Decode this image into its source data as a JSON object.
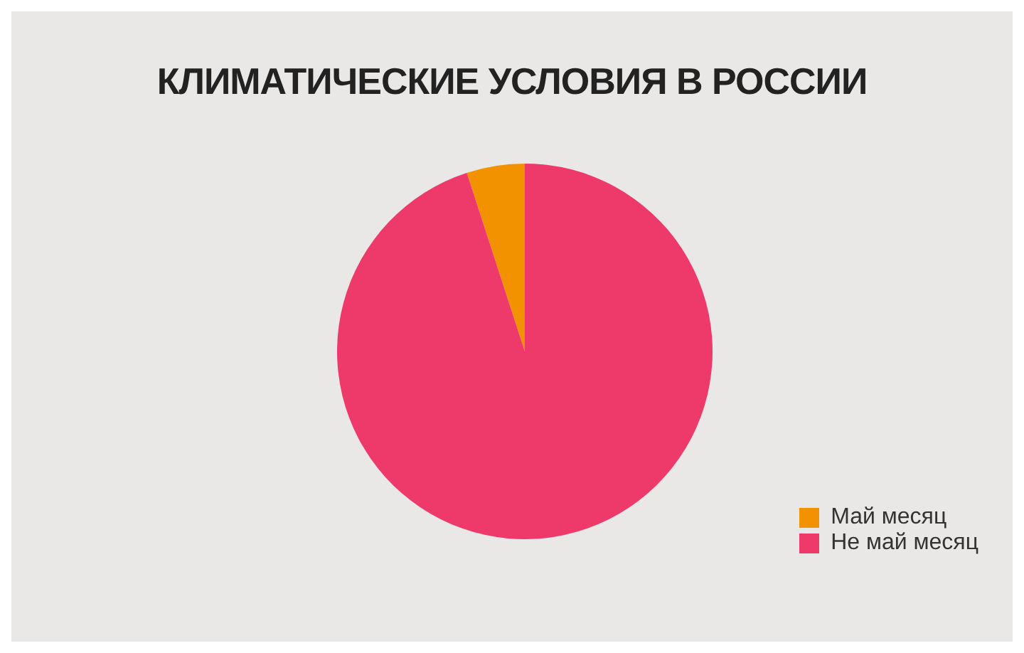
{
  "chart_data": {
    "type": "pie",
    "title": "КЛИМАТИЧЕСКИЕ УСЛОВИЯ В РОССИИ",
    "categories": [
      "Май месяц",
      "Не май месяц"
    ],
    "values": [
      5,
      95
    ],
    "colors": [
      "#f39200",
      "#ee3a6a"
    ],
    "legend": "bottom right"
  }
}
